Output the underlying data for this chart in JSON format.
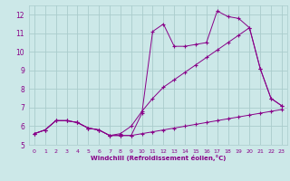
{
  "x_data": [
    0,
    1,
    2,
    3,
    4,
    5,
    6,
    7,
    8,
    9,
    10,
    11,
    12,
    13,
    14,
    15,
    16,
    17,
    18,
    19,
    20,
    21,
    22,
    23
  ],
  "series1": [
    5.6,
    5.8,
    6.3,
    6.3,
    6.2,
    5.9,
    5.8,
    5.5,
    5.5,
    5.5,
    5.6,
    5.7,
    5.8,
    5.9,
    6.0,
    6.1,
    6.2,
    6.3,
    6.4,
    6.5,
    6.6,
    6.7,
    6.8,
    6.9
  ],
  "series2": [
    5.6,
    5.8,
    6.3,
    6.3,
    6.2,
    5.9,
    5.8,
    5.5,
    5.5,
    5.5,
    6.7,
    11.1,
    11.5,
    10.3,
    10.3,
    10.4,
    10.5,
    12.2,
    11.9,
    11.8,
    11.3,
    9.1,
    7.5,
    7.1
  ],
  "series3": [
    5.6,
    5.8,
    6.3,
    6.3,
    6.2,
    5.9,
    5.8,
    5.5,
    5.6,
    6.0,
    6.8,
    7.5,
    8.1,
    8.5,
    8.9,
    9.3,
    9.7,
    10.1,
    10.5,
    10.9,
    11.3,
    9.1,
    7.5,
    7.1
  ],
  "line_color": "#880088",
  "bg_color": "#cce8e8",
  "grid_color": "#aacccc",
  "xlabel": "Windchill (Refroidissement éolien,°C)",
  "ylim": [
    5,
    12.5
  ],
  "xlim": [
    -0.5,
    23.5
  ],
  "yticks": [
    5,
    6,
    7,
    8,
    9,
    10,
    11,
    12
  ],
  "xticks": [
    0,
    1,
    2,
    3,
    4,
    5,
    6,
    7,
    8,
    9,
    10,
    11,
    12,
    13,
    14,
    15,
    16,
    17,
    18,
    19,
    20,
    21,
    22,
    23
  ],
  "font_color": "#880088"
}
